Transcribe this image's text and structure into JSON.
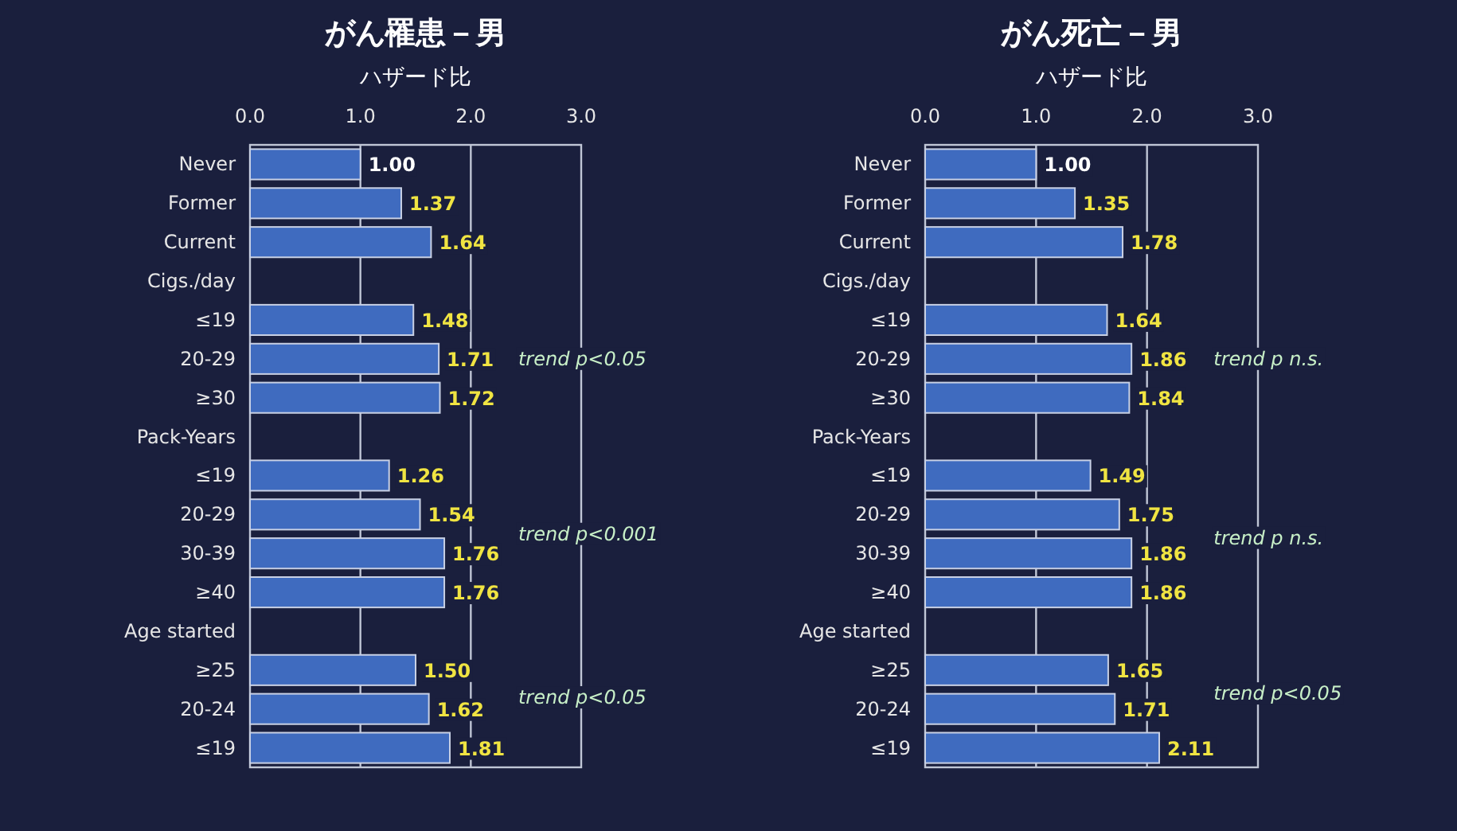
{
  "chart_data": [
    {
      "type": "bar",
      "orientation": "horizontal",
      "title": "がん罹患－男",
      "xlabel": "ハザード比",
      "categories": [
        "Never",
        "Former",
        "Current",
        "Cigs./day",
        "≤19",
        "20-29",
        "≥30",
        "Pack-Years",
        "≤19",
        "20-29",
        "30-39",
        "≥40",
        "Age started",
        "≥25",
        "20-24",
        "≤19"
      ],
      "values": [
        1.0,
        1.37,
        1.64,
        null,
        1.48,
        1.71,
        1.72,
        null,
        1.26,
        1.54,
        1.76,
        1.76,
        null,
        1.5,
        1.62,
        1.81
      ],
      "value_labels": [
        "1.00",
        "1.37",
        "1.64",
        null,
        "1.48",
        "1.71",
        "1.72",
        null,
        "1.26",
        "1.54",
        "1.76",
        "1.76",
        null,
        "1.50",
        "1.62",
        "1.81"
      ],
      "color": "#3f6bbf",
      "xlim": [
        0,
        3
      ],
      "xticks": [
        {
          "value": 0,
          "label": "0.0"
        },
        {
          "value": 1,
          "label": "1.0"
        },
        {
          "value": 2,
          "label": "2.0"
        },
        {
          "value": 3,
          "label": "3.0"
        }
      ],
      "grid": "x",
      "annotations": [
        "trend p<0.05",
        "trend p<0.001",
        "trend p<0.05"
      ]
    },
    {
      "type": "bar",
      "orientation": "horizontal",
      "title": "がん死亡－男",
      "xlabel": "ハザード比",
      "categories": [
        "Never",
        "Former",
        "Current",
        "Cigs./day",
        "≤19",
        "20-29",
        "≥30",
        "Pack-Years",
        "≤19",
        "20-29",
        "30-39",
        "≥40",
        "Age started",
        "≥25",
        "20-24",
        "≤19"
      ],
      "values": [
        1.0,
        1.35,
        1.78,
        null,
        1.64,
        1.86,
        1.84,
        null,
        1.49,
        1.75,
        1.86,
        1.86,
        null,
        1.65,
        1.71,
        2.11
      ],
      "value_labels": [
        "1.00",
        "1.35",
        "1.78",
        null,
        "1.64",
        "1.86",
        "1.84",
        null,
        "1.49",
        "1.75",
        "1.86",
        "1.86",
        null,
        "1.65",
        "1.71",
        "2.11"
      ],
      "color": "#3f6bbf",
      "xlim": [
        0,
        3
      ],
      "xticks": [
        {
          "value": 0,
          "label": "0.0"
        },
        {
          "value": 1,
          "label": "1.0"
        },
        {
          "value": 2,
          "label": "2.0"
        },
        {
          "value": 3,
          "label": "3.0"
        }
      ],
      "grid": "x",
      "annotations": [
        "trend p n.s.",
        "trend p n.s.",
        "trend p<0.05"
      ]
    }
  ]
}
